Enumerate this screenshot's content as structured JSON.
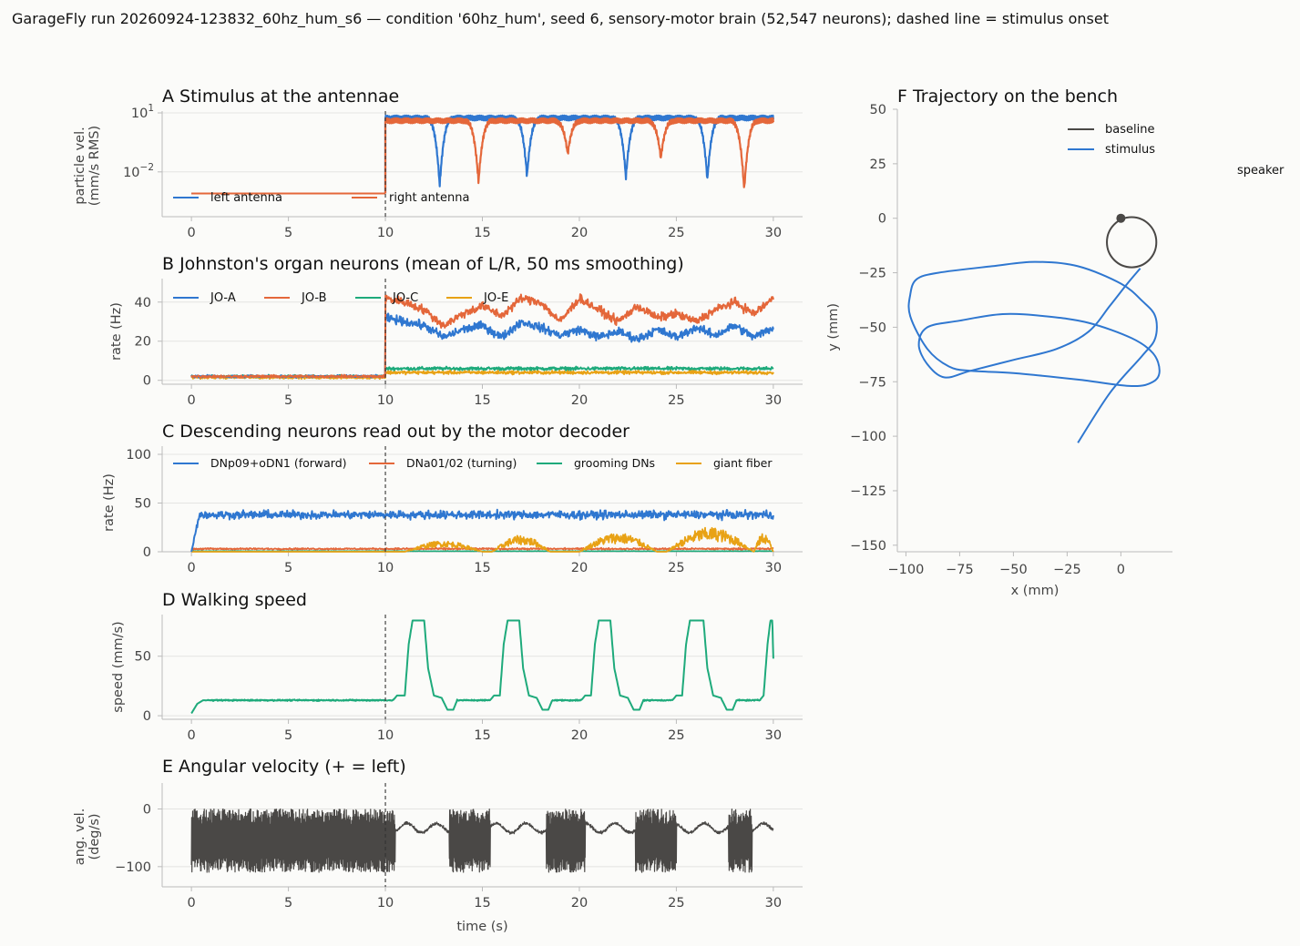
{
  "figure": {
    "suptitle": "GarageFly run 20260924-123832_60hz_hum_s6 — condition '60hz_hum', seed 6, sensory-motor brain (52,547 neurons); dashed line = stimulus onset",
    "colors": {
      "blue": "#2f77d0",
      "orange": "#e4673a",
      "green": "#1eaa7b",
      "yellow": "#e8a215",
      "dark": "#4a4846",
      "grid": "#e4e4e2",
      "axis": "#bbbbbb"
    }
  },
  "chart_data": [
    {
      "id": "A",
      "type": "line",
      "title": "A  Stimulus at the antennae",
      "xlabel": "",
      "ylabel": "particle vel.\n(mm/s RMS)",
      "yscale": "log",
      "xlim": [
        0,
        30
      ],
      "ylim": [
        0.0001,
        10
      ],
      "xticks": [
        "0",
        "5",
        "10",
        "15",
        "20",
        "25",
        "30"
      ],
      "yticks": [
        {
          "value": 10,
          "label": "10^1"
        },
        {
          "value": 0.01,
          "label": "10^-2"
        }
      ],
      "stimulus_onset": 10,
      "series": [
        {
          "name": "left antenna",
          "color": "#2f77d0",
          "baseline": 0.0008,
          "level": 5.5,
          "notches": [
            {
              "x": 12.8,
              "y": 0.002
            },
            {
              "x": 17.3,
              "y": 0.006
            },
            {
              "x": 22.4,
              "y": 0.005
            },
            {
              "x": 26.6,
              "y": 0.004
            }
          ]
        },
        {
          "name": "right antenna",
          "color": "#e4673a",
          "baseline": 0.0008,
          "level": 4.0,
          "notches": [
            {
              "x": 14.8,
              "y": 0.003
            },
            {
              "x": 19.4,
              "y": 0.08
            },
            {
              "x": 24.2,
              "y": 0.05
            },
            {
              "x": 28.5,
              "y": 0.0012
            }
          ]
        }
      ]
    },
    {
      "id": "B",
      "type": "line",
      "title": "B  Johnston's organ neurons (mean of L/R, 50 ms smoothing)",
      "xlabel": "",
      "ylabel": "rate (Hz)",
      "xlim": [
        0,
        30
      ],
      "ylim": [
        -2,
        52
      ],
      "xticks": [
        "0",
        "5",
        "10",
        "15",
        "20",
        "25",
        "30"
      ],
      "yticks": [
        0,
        20,
        40
      ],
      "stimulus_onset": 10,
      "series": [
        {
          "name": "JO-A",
          "color": "#2f77d0",
          "baseline": 2,
          "response": [
            [
              10,
              32
            ],
            [
              11,
              30
            ],
            [
              12,
              28
            ],
            [
              13,
              22
            ],
            [
              14,
              26
            ],
            [
              15,
              28
            ],
            [
              16,
              22
            ],
            [
              17,
              30
            ],
            [
              18,
              27
            ],
            [
              19,
              23
            ],
            [
              20,
              26
            ],
            [
              21,
              22
            ],
            [
              22,
              25
            ],
            [
              23,
              21
            ],
            [
              24,
              26
            ],
            [
              25,
              22
            ],
            [
              26,
              27
            ],
            [
              27,
              23
            ],
            [
              28,
              28
            ],
            [
              29,
              22
            ],
            [
              30,
              27
            ]
          ]
        },
        {
          "name": "JO-B",
          "color": "#e4673a",
          "baseline": 2,
          "response": [
            [
              10,
              42
            ],
            [
              11,
              40
            ],
            [
              12,
              36
            ],
            [
              13,
              28
            ],
            [
              14,
              34
            ],
            [
              15,
              38
            ],
            [
              16,
              33
            ],
            [
              17,
              42
            ],
            [
              18,
              40
            ],
            [
              19,
              30
            ],
            [
              20,
              42
            ],
            [
              21,
              36
            ],
            [
              22,
              30
            ],
            [
              23,
              38
            ],
            [
              24,
              32
            ],
            [
              25,
              34
            ],
            [
              26,
              30
            ],
            [
              27,
              36
            ],
            [
              28,
              40
            ],
            [
              29,
              34
            ],
            [
              30,
              42
            ]
          ]
        },
        {
          "name": "JO-C",
          "color": "#1eaa7b",
          "baseline": 2,
          "response": [
            [
              10,
              6
            ],
            [
              30,
              6
            ]
          ]
        },
        {
          "name": "JO-E",
          "color": "#e8a215",
          "baseline": 1.5,
          "response": [
            [
              10,
              4
            ],
            [
              30,
              4
            ]
          ]
        }
      ]
    },
    {
      "id": "C",
      "type": "line",
      "title": "C  Descending neurons read out by the motor decoder",
      "xlabel": "",
      "ylabel": "rate (Hz)",
      "xlim": [
        0,
        30
      ],
      "ylim": [
        0,
        100
      ],
      "xticks": [
        "0",
        "5",
        "10",
        "15",
        "20",
        "25",
        "30"
      ],
      "yticks": [
        0,
        50,
        100
      ],
      "stimulus_onset": 10,
      "series": [
        {
          "name": "DNp09+oDN1 (forward)",
          "color": "#2f77d0",
          "level": 38
        },
        {
          "name": "DNa01/02 (turning)",
          "color": "#e4673a",
          "level": 3
        },
        {
          "name": "grooming DNs",
          "color": "#1eaa7b",
          "level": 0.5
        },
        {
          "name": "giant fiber",
          "color": "#e8a215",
          "bursts": [
            [
              11,
              15,
              8
            ],
            [
              15.5,
              18.5,
              12
            ],
            [
              20,
              24,
              14
            ],
            [
              24.5,
              29,
              18
            ],
            [
              29,
              30,
              14
            ]
          ]
        }
      ]
    },
    {
      "id": "D",
      "type": "line",
      "title": "D  Walking speed",
      "xlabel": "",
      "ylabel": "speed (mm/s)",
      "xlim": [
        0,
        30
      ],
      "ylim": [
        -3,
        85
      ],
      "xticks": [
        "0",
        "5",
        "10",
        "15",
        "20",
        "25",
        "30"
      ],
      "yticks": [
        0,
        50
      ],
      "stimulus_onset": 10,
      "series": [
        {
          "name": "speed",
          "color": "#1eaa7b",
          "points": [
            [
              0,
              2
            ],
            [
              0.3,
              10
            ],
            [
              0.6,
              13
            ],
            [
              10.4,
              13
            ],
            [
              10.6,
              17
            ],
            [
              11.0,
              17
            ],
            [
              11.2,
              60
            ],
            [
              11.4,
              80
            ],
            [
              12.0,
              80
            ],
            [
              12.2,
              40
            ],
            [
              12.5,
              17
            ],
            [
              12.9,
              15
            ],
            [
              13.2,
              5
            ],
            [
              13.5,
              5
            ],
            [
              13.7,
              13
            ],
            [
              15.4,
              13
            ],
            [
              15.6,
              17
            ],
            [
              15.9,
              17
            ],
            [
              16.1,
              60
            ],
            [
              16.3,
              80
            ],
            [
              16.9,
              80
            ],
            [
              17.1,
              40
            ],
            [
              17.4,
              17
            ],
            [
              17.8,
              15
            ],
            [
              18.1,
              5
            ],
            [
              18.4,
              5
            ],
            [
              18.6,
              13
            ],
            [
              20.1,
              13
            ],
            [
              20.3,
              17
            ],
            [
              20.6,
              17
            ],
            [
              20.8,
              60
            ],
            [
              21.0,
              80
            ],
            [
              21.6,
              80
            ],
            [
              21.8,
              40
            ],
            [
              22.1,
              17
            ],
            [
              22.5,
              15
            ],
            [
              22.8,
              5
            ],
            [
              23.1,
              5
            ],
            [
              23.3,
              13
            ],
            [
              24.8,
              13
            ],
            [
              25.0,
              17
            ],
            [
              25.3,
              17
            ],
            [
              25.5,
              60
            ],
            [
              25.7,
              80
            ],
            [
              26.4,
              80
            ],
            [
              26.6,
              40
            ],
            [
              26.9,
              17
            ],
            [
              27.3,
              15
            ],
            [
              27.6,
              5
            ],
            [
              27.9,
              5
            ],
            [
              28.1,
              13
            ],
            [
              29.3,
              13
            ],
            [
              29.5,
              17
            ],
            [
              29.7,
              60
            ],
            [
              29.85,
              80
            ],
            [
              29.95,
              80
            ],
            [
              30,
              48
            ]
          ]
        }
      ]
    },
    {
      "id": "E",
      "type": "line",
      "title": "E  Angular velocity (+ = left)",
      "xlabel": "time (s)",
      "ylabel": "ang. vel.\n(deg/s)",
      "xlim": [
        0,
        30
      ],
      "ylim": [
        -135,
        45
      ],
      "xticks": [
        "0",
        "5",
        "10",
        "15",
        "20",
        "25",
        "30"
      ],
      "yticks": [
        0,
        -100
      ],
      "stimulus_onset": 10,
      "series": [
        {
          "name": "angular velocity",
          "color": "#4a4846",
          "oscillating": [
            [
              0,
              10.5
            ],
            [
              13.3,
              15.4
            ],
            [
              18.3,
              20.3
            ],
            [
              22.9,
              25.0
            ],
            [
              27.7,
              28.9
            ]
          ],
          "center": -55,
          "amplitude": 55,
          "quiet_level": -33
        }
      ]
    },
    {
      "id": "F",
      "type": "line",
      "title": "F  Trajectory on the bench",
      "xlabel": "x (mm)",
      "ylabel": "y (mm)",
      "xlim": [
        -104,
        24
      ],
      "ylim": [
        -153,
        50
      ],
      "xticks": [
        {
          "value": -100,
          "label": "−100"
        },
        {
          "value": -75,
          "label": "−75"
        },
        {
          "value": -50,
          "label": "−50"
        },
        {
          "value": -25,
          "label": "−25"
        },
        {
          "value": 0,
          "label": "0"
        }
      ],
      "yticks": [
        {
          "value": 50,
          "label": "50"
        },
        {
          "value": 25,
          "label": "25"
        },
        {
          "value": 0,
          "label": "0"
        },
        {
          "value": -25,
          "label": "−25"
        },
        {
          "value": -50,
          "label": "−50"
        },
        {
          "value": -75,
          "label": "−75"
        },
        {
          "value": -100,
          "label": "−100"
        },
        {
          "value": -125,
          "label": "−125"
        },
        {
          "value": -150,
          "label": "−150"
        }
      ],
      "annotation": "speaker",
      "series": [
        {
          "name": "baseline",
          "color": "#4a4846",
          "loop": {
            "cx": 5,
            "cy": -11,
            "r": 11.5
          }
        },
        {
          "name": "stimulus",
          "color": "#2f77d0",
          "points": [
            [
              9,
              -23
            ],
            [
              3,
              -30
            ],
            [
              -5,
              -40
            ],
            [
              -15,
              -52
            ],
            [
              -30,
              -60
            ],
            [
              -50,
              -65
            ],
            [
              -70,
              -70
            ],
            [
              -82,
              -73
            ],
            [
              -90,
              -67
            ],
            [
              -94,
              -58
            ],
            [
              -90,
              -50
            ],
            [
              -75,
              -47
            ],
            [
              -55,
              -44
            ],
            [
              -35,
              -45
            ],
            [
              -15,
              -48
            ],
            [
              5,
              -55
            ],
            [
              15,
              -62
            ],
            [
              18,
              -70
            ],
            [
              15,
              -75
            ],
            [
              5,
              -77
            ],
            [
              -20,
              -74
            ],
            [
              -50,
              -71
            ],
            [
              -70,
              -70
            ],
            [
              -80,
              -68
            ],
            [
              -90,
              -60
            ],
            [
              -98,
              -45
            ],
            [
              -98,
              -35
            ],
            [
              -95,
              -28
            ],
            [
              -85,
              -25
            ],
            [
              -60,
              -22
            ],
            [
              -40,
              -20
            ],
            [
              -20,
              -22
            ],
            [
              0,
              -30
            ],
            [
              10,
              -38
            ],
            [
              16,
              -45
            ],
            [
              16,
              -55
            ],
            [
              10,
              -63
            ],
            [
              -5,
              -80
            ],
            [
              -20,
              -103
            ]
          ]
        },
        {
          "name": "start",
          "color": "#4a4846",
          "point": [
            0,
            0
          ]
        }
      ]
    }
  ]
}
